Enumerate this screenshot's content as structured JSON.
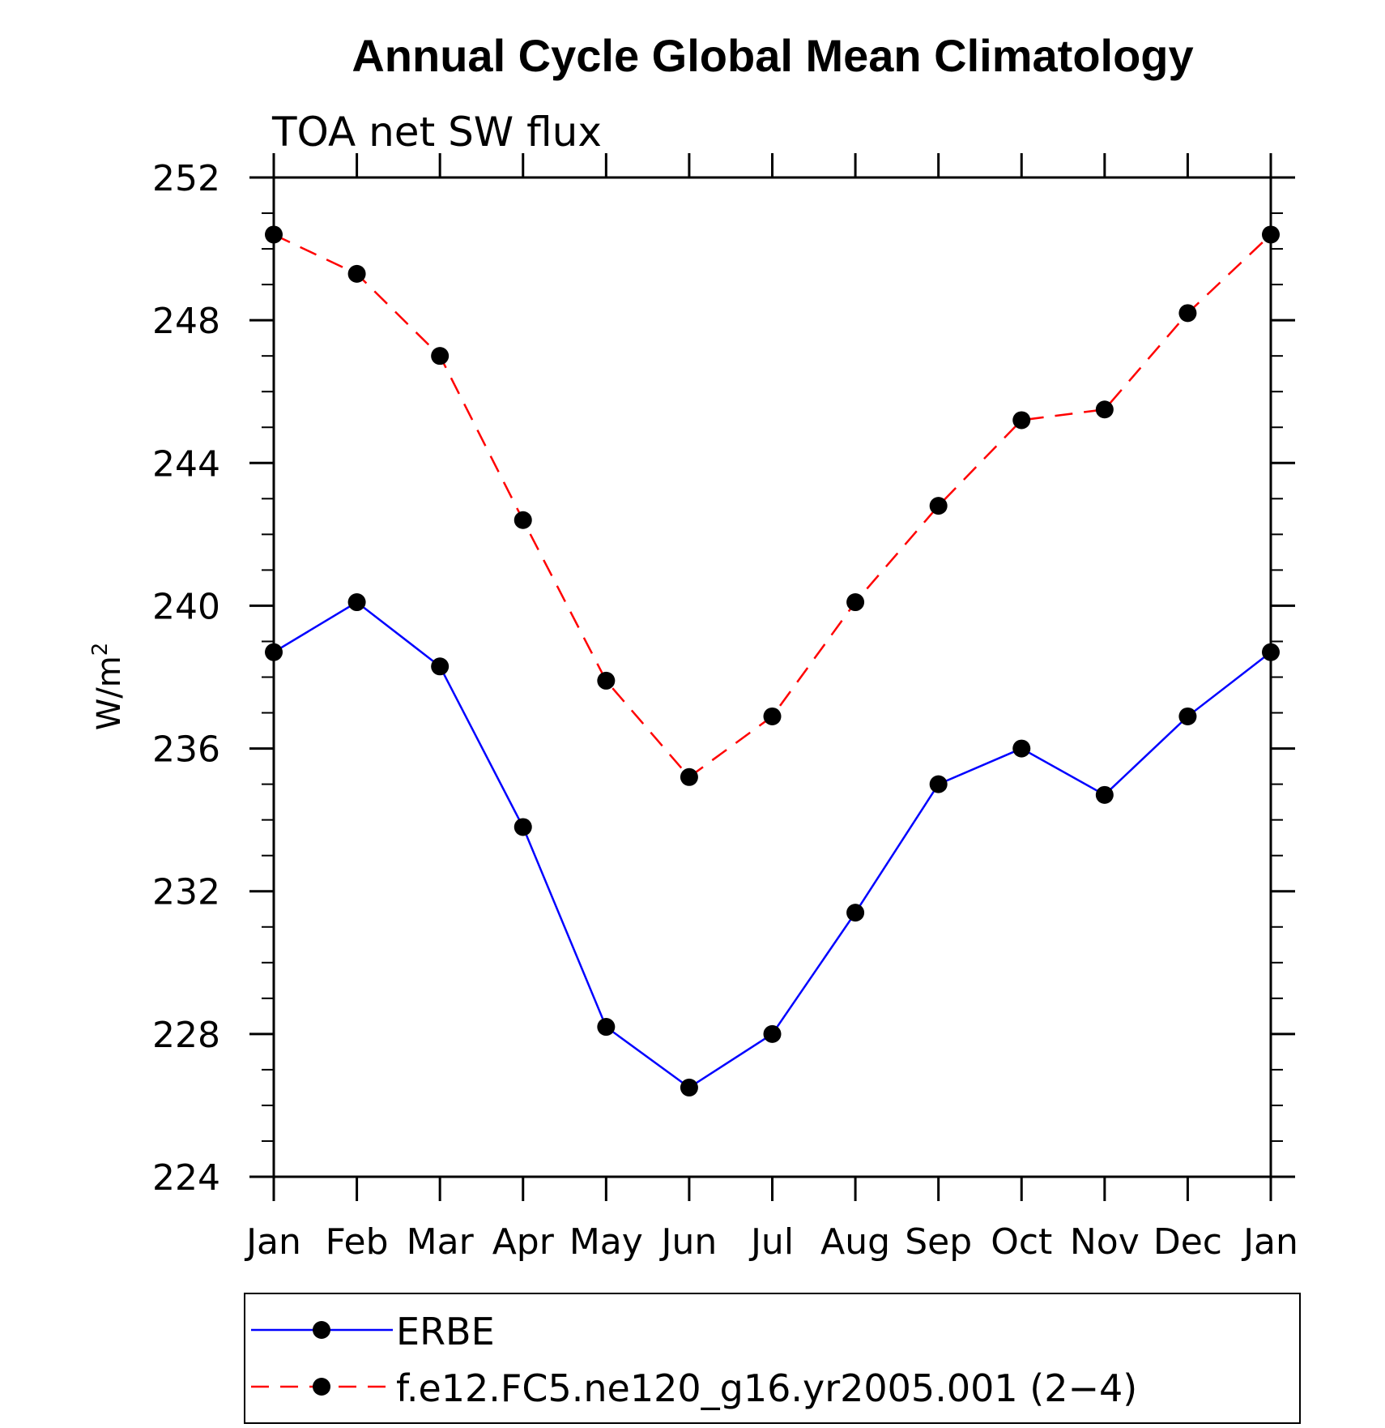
{
  "chart_data": {
    "type": "line",
    "title": "Annual Cycle Global Mean Climatology",
    "subtitle": "TOA net SW flux",
    "ylabel_base": "W/m",
    "ylabel_sup": "2",
    "categories": [
      "Jan",
      "Feb",
      "Mar",
      "Apr",
      "May",
      "Jun",
      "Jul",
      "Aug",
      "Sep",
      "Oct",
      "Nov",
      "Dec",
      "Jan"
    ],
    "ylim": [
      224,
      252
    ],
    "yticks": [
      224,
      228,
      232,
      236,
      240,
      244,
      248,
      252
    ],
    "yminor_step": 1,
    "grid": false,
    "legend_position": "bottom",
    "series": [
      {
        "name": "ERBE",
        "color": "#0000ff",
        "line_style": "solid",
        "marker": "filled-circle",
        "values": [
          238.7,
          240.1,
          238.3,
          233.8,
          228.2,
          226.5,
          228.0,
          231.4,
          235.0,
          236.0,
          234.7,
          236.9,
          238.7
        ]
      },
      {
        "name": "f.e12.FC5.ne120_g16.yr2005.001 (2−4)",
        "color": "#ff0000",
        "line_style": "dashed",
        "marker": "filled-circle",
        "values": [
          250.4,
          249.3,
          247.0,
          242.4,
          237.9,
          235.2,
          236.9,
          240.1,
          242.8,
          245.2,
          245.5,
          248.2,
          250.4
        ]
      }
    ]
  }
}
